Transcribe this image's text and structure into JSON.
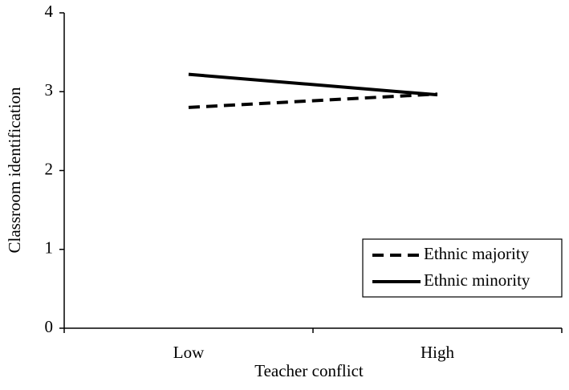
{
  "chart_data": {
    "type": "line",
    "xlabel": "Teacher conflict",
    "ylabel": "Classroom identification",
    "categories": [
      "Low",
      "High"
    ],
    "series": [
      {
        "name": "Ethnic majority",
        "color": "#000000",
        "dash": "dashed",
        "values": [
          2.8,
          2.97
        ]
      },
      {
        "name": "Ethnic minority",
        "color": "#000000",
        "dash": "solid",
        "values": [
          3.22,
          2.96
        ]
      }
    ],
    "ylim": [
      0,
      4
    ],
    "yticks": [
      0,
      1,
      2,
      3,
      4
    ],
    "grid": false,
    "legend": "lower right"
  }
}
